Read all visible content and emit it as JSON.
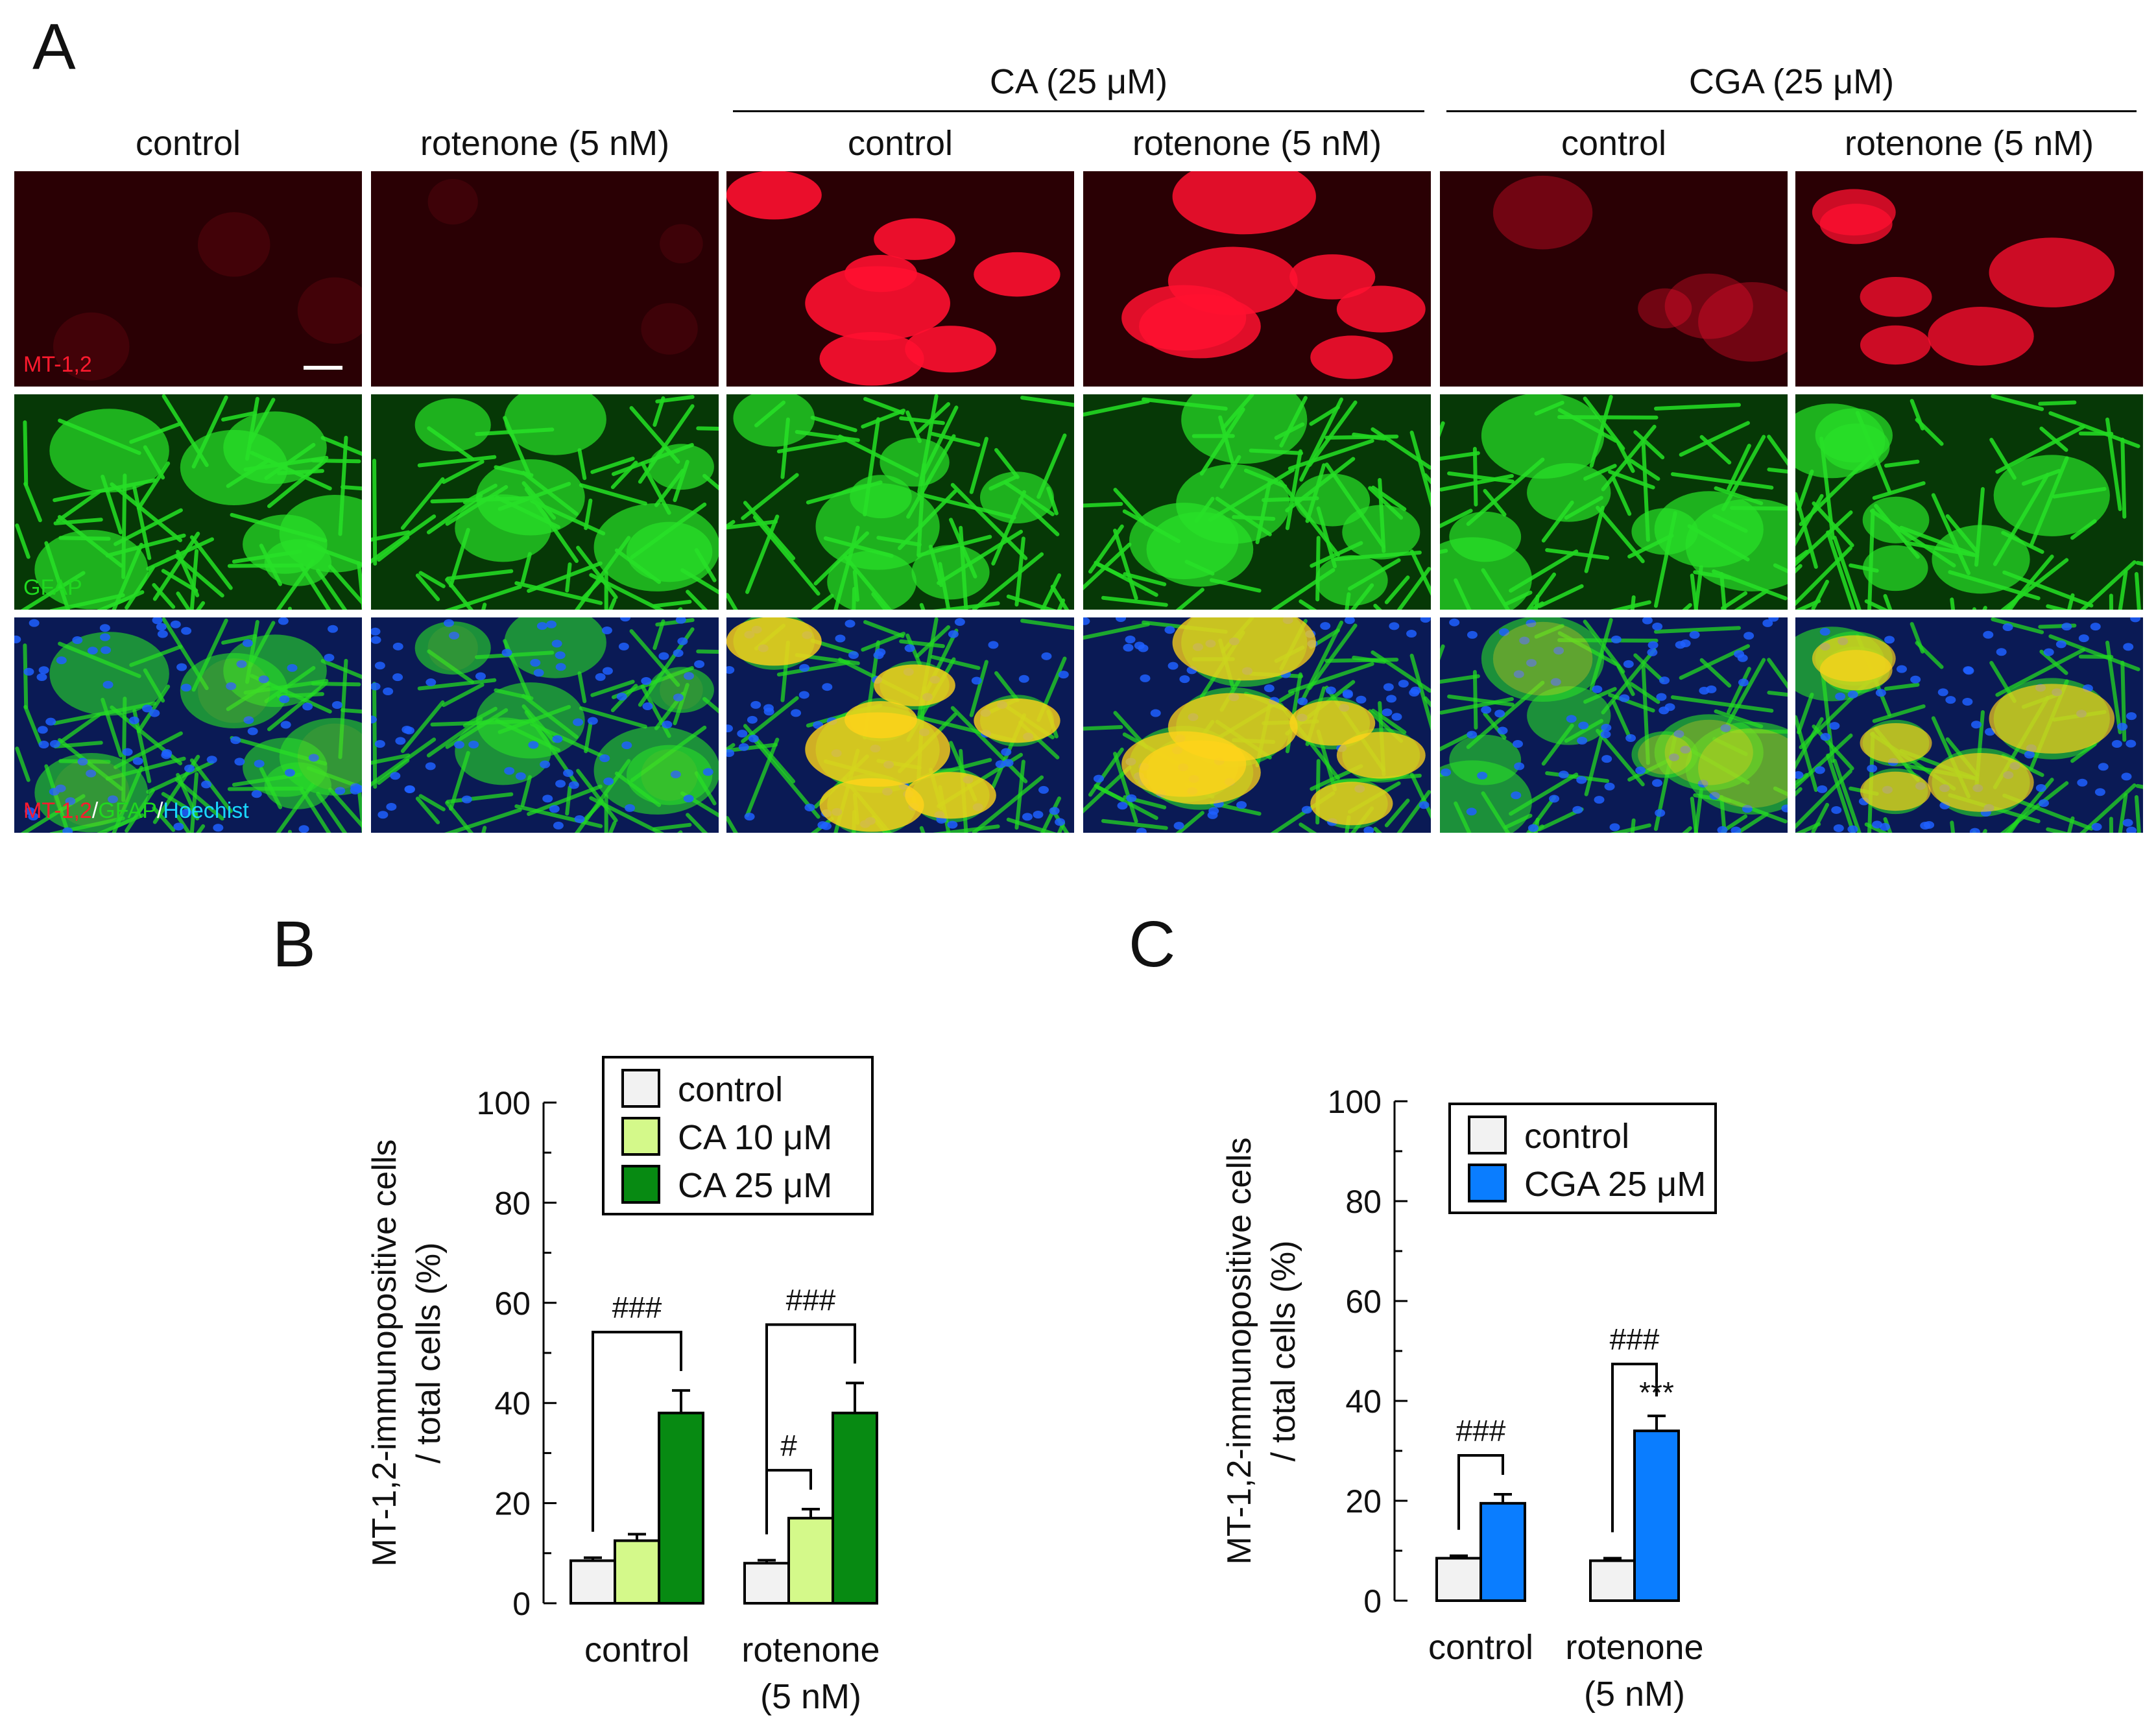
{
  "panel_a": {
    "letter": "A",
    "groups": [
      {
        "label": "CA (25 μM)",
        "columns": [
          2,
          3
        ]
      },
      {
        "label": "CGA (25 μM)",
        "columns": [
          4,
          5
        ]
      }
    ],
    "columns": [
      "control",
      "rotenone (5 nM)",
      "control",
      "rotenone (5 nM)",
      "control",
      "rotenone (5 nM)"
    ],
    "rows": [
      {
        "stain": "MT-1,2",
        "color": "#ff1a2e"
      },
      {
        "stain": "GFAP",
        "color": "#1fd91f"
      },
      {
        "stain": "merge",
        "parts": [
          {
            "text": "MT-1,2",
            "color": "#ff1a2e"
          },
          {
            "text": "/",
            "color": "#ffffff"
          },
          {
            "text": "GFAP",
            "color": "#1fd91f"
          },
          {
            "text": "/",
            "color": "#ffffff"
          },
          {
            "text": "Hoechist",
            "color": "#19d6ff"
          }
        ]
      }
    ],
    "red_intensity": [
      0.12,
      0.1,
      0.95,
      0.9,
      0.35,
      0.8
    ]
  },
  "chart_data": [
    {
      "panel": "B",
      "type": "bar",
      "title": "",
      "ylabel_lines": [
        "MT-1,2-immunopositive cells",
        "/ total cells (%)"
      ],
      "xlabel": "",
      "ylim": [
        0,
        100
      ],
      "yticks": [
        0,
        20,
        40,
        60,
        80,
        100
      ],
      "categories": [
        {
          "lines": [
            "control"
          ]
        },
        {
          "lines": [
            "rotenone",
            "(5 nM)"
          ]
        }
      ],
      "series": [
        {
          "name": "control",
          "color": "#f2f2f2",
          "values": [
            8.5,
            8
          ],
          "errors": [
            0.6,
            0.6
          ]
        },
        {
          "name": "CA 10 μM",
          "color": "#d4f98a",
          "values": [
            12.5,
            17
          ],
          "errors": [
            1.3,
            1.8
          ]
        },
        {
          "name": "CA 25 μM",
          "color": "#078a12",
          "values": [
            38,
            38
          ],
          "errors": [
            4.5,
            6
          ]
        }
      ],
      "legend_position": "top-right",
      "annotations": [
        {
          "text": "###",
          "category": 0,
          "from_series": 0,
          "to_series": 2
        },
        {
          "text": "###",
          "category": 1,
          "from_series": 0,
          "to_series": 2
        },
        {
          "text": "#",
          "category": 1,
          "from_series": 0,
          "to_series": 1
        }
      ]
    },
    {
      "panel": "C",
      "type": "bar",
      "title": "",
      "ylabel_lines": [
        "MT-1,2-immunopositive cells",
        "/ total cells (%)"
      ],
      "xlabel": "",
      "ylim": [
        0,
        100
      ],
      "yticks": [
        0,
        20,
        40,
        60,
        80,
        100
      ],
      "categories": [
        {
          "lines": [
            "control"
          ]
        },
        {
          "lines": [
            "rotenone",
            "(5 nM)"
          ]
        }
      ],
      "series": [
        {
          "name": "control",
          "color": "#f2f2f2",
          "values": [
            8.5,
            8
          ],
          "errors": [
            0.5,
            0.5
          ]
        },
        {
          "name": "CGA 25 μM",
          "color": "#0a7dff",
          "values": [
            19.5,
            34
          ],
          "errors": [
            1.8,
            3
          ]
        }
      ],
      "legend_position": "top-right",
      "annotations": [
        {
          "text": "###",
          "category": 0,
          "from_series": 0,
          "to_series": 1
        },
        {
          "text": "###",
          "category": 1,
          "from_series": 0,
          "to_series": 1
        },
        {
          "text": "***",
          "category": 1,
          "on_series": 1
        }
      ]
    }
  ]
}
